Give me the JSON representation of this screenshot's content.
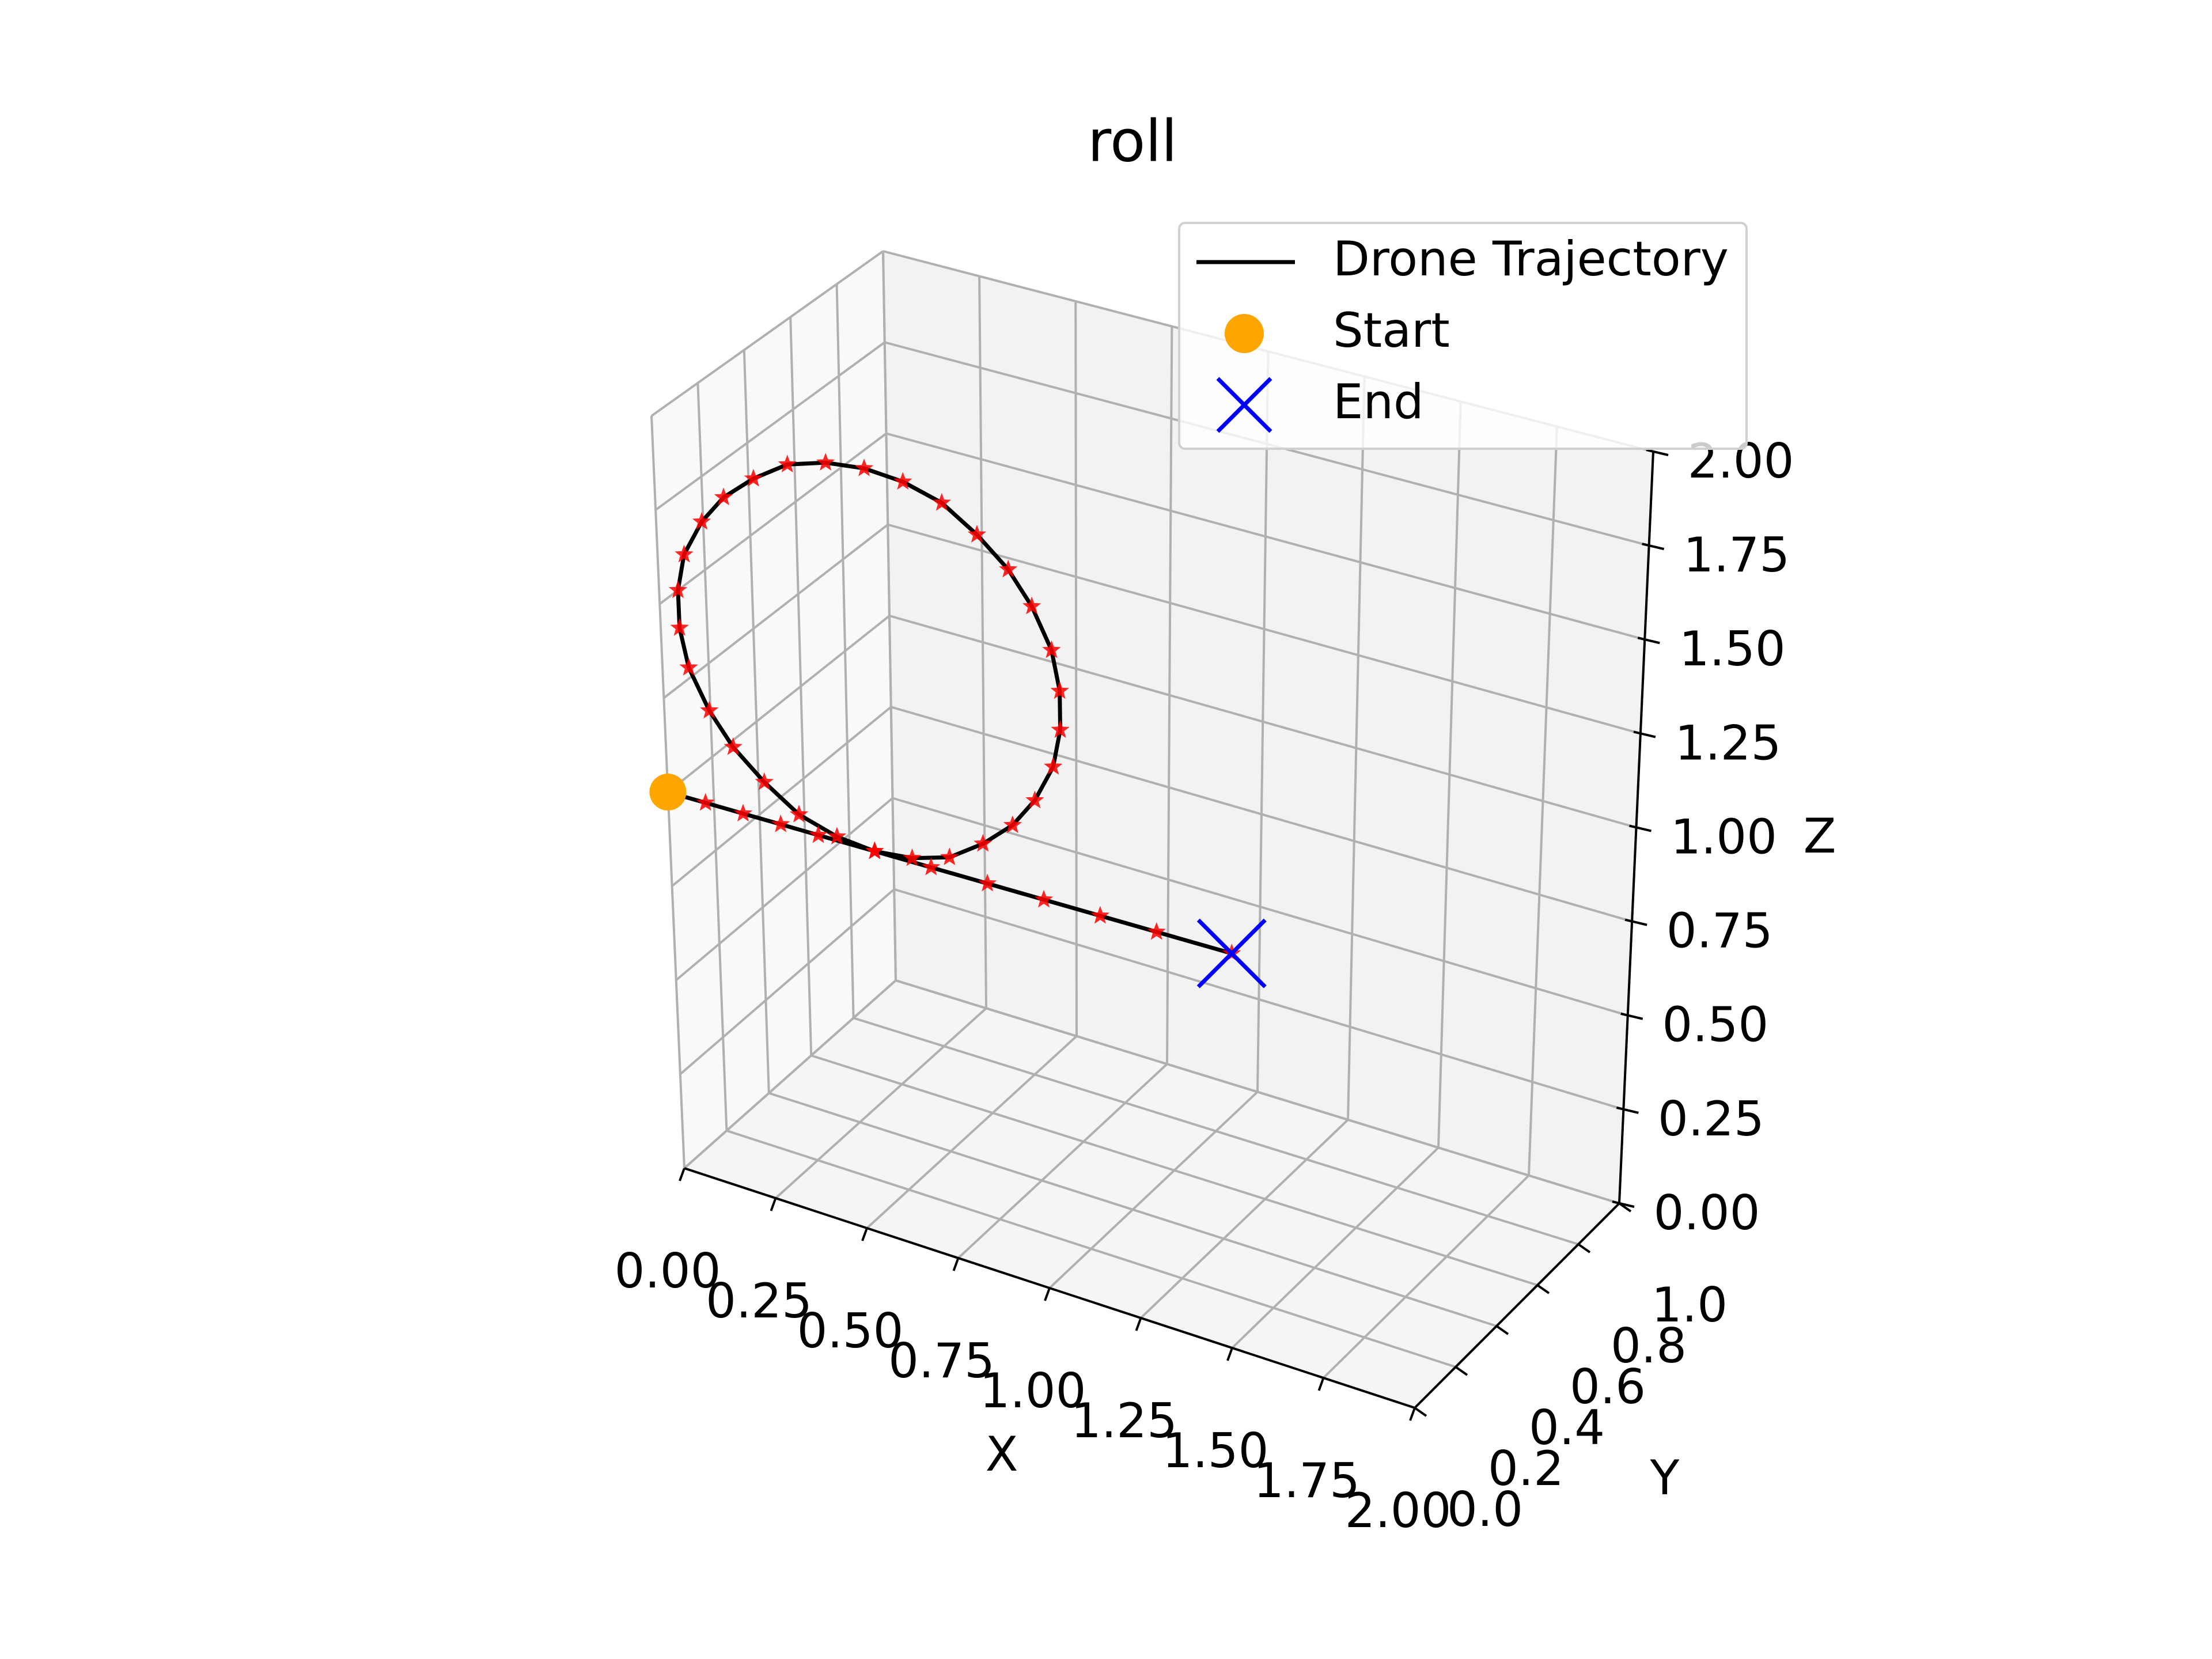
{
  "chart_data": {
    "type": "line3d",
    "title": "roll",
    "xlabel": "X",
    "ylabel": "Y",
    "zlabel": "Z",
    "xlim": [
      0,
      2
    ],
    "ylim": [
      0,
      1
    ],
    "zlim": [
      0,
      2
    ],
    "xticks": [
      {
        "value": 0,
        "label": "0.00"
      },
      {
        "value": 0.25,
        "label": "0.25"
      },
      {
        "value": 0.5,
        "label": "0.50"
      },
      {
        "value": 0.75,
        "label": "0.75"
      },
      {
        "value": 1,
        "label": "1.00"
      },
      {
        "value": 1.25,
        "label": "1.25"
      },
      {
        "value": 1.5,
        "label": "1.50"
      },
      {
        "value": 1.75,
        "label": "1.75"
      },
      {
        "value": 2,
        "label": "2.00"
      }
    ],
    "yticks": [
      {
        "value": 0,
        "label": "0.0"
      },
      {
        "value": 0.2,
        "label": "0.2"
      },
      {
        "value": 0.4,
        "label": "0.4"
      },
      {
        "value": 0.6,
        "label": "0.6"
      },
      {
        "value": 0.8,
        "label": "0.8"
      },
      {
        "value": 1,
        "label": "1.0"
      }
    ],
    "zticks": [
      {
        "value": 0,
        "label": "0.00"
      },
      {
        "value": 0.25,
        "label": "0.25"
      },
      {
        "value": 0.5,
        "label": "0.50"
      },
      {
        "value": 0.75,
        "label": "0.75"
      },
      {
        "value": 1,
        "label": "1.00"
      },
      {
        "value": 1.25,
        "label": "1.25"
      },
      {
        "value": 1.5,
        "label": "1.50"
      },
      {
        "value": 1.75,
        "label": "1.75"
      },
      {
        "value": 2,
        "label": "2.00"
      }
    ],
    "grid": true,
    "legend": "upper right",
    "series": [
      {
        "name": "Drone Trajectory",
        "color": "#000000",
        "marker_color": "#ff0000",
        "x": [
          0,
          0.1,
          0.2,
          0.3,
          0.4,
          0.55,
          0.65,
          0.75,
          0.84,
          0.92,
          0.98,
          1.03,
          1.05,
          1.05,
          1.03,
          0.98,
          0.92,
          0.84,
          0.75,
          0.65,
          0.55,
          0.45,
          0.35,
          0.26,
          0.18,
          0.12,
          0.07,
          0.05,
          0.05,
          0.07,
          0.12,
          0.18,
          0.26,
          0.35,
          0.45,
          0.55,
          0.7,
          0.85,
          1.0,
          1.15,
          1.3,
          1.5
        ],
        "y": [
          0,
          0,
          0,
          0,
          0,
          0,
          0,
          0,
          0,
          0,
          0,
          0,
          0,
          0,
          0,
          0,
          0,
          0,
          0,
          0,
          0,
          0,
          0,
          0,
          0,
          0,
          0,
          0,
          0,
          0,
          0,
          0,
          0,
          0,
          0,
          0,
          0,
          0,
          0,
          0,
          0,
          0
        ],
        "z": [
          1,
          1,
          1,
          1,
          1,
          1.0,
          1.01,
          1.04,
          1.1,
          1.17,
          1.25,
          1.35,
          1.45,
          1.55,
          1.65,
          1.75,
          1.83,
          1.9,
          1.96,
          1.99,
          2.0,
          1.99,
          1.96,
          1.9,
          1.83,
          1.75,
          1.65,
          1.55,
          1.45,
          1.35,
          1.25,
          1.17,
          1.1,
          1.04,
          1.01,
          1.0,
          1,
          1,
          1,
          1,
          1,
          1
        ]
      }
    ],
    "start": {
      "name": "Start",
      "color": "#ffa500",
      "x": 0,
      "y": 0,
      "z": 1
    },
    "end": {
      "name": "End",
      "color": "#0000ff",
      "x": 1.5,
      "y": 0,
      "z": 1
    }
  }
}
